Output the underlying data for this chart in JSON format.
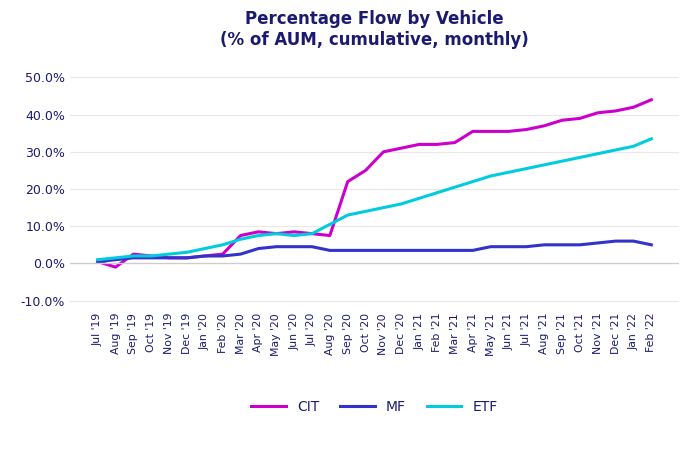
{
  "title_line1": "Percentage Flow by Vehicle",
  "title_line2": "(% of AUM, cumulative, monthly)",
  "title_color": "#1a1a6e",
  "background_color": "#ffffff",
  "xlabels": [
    "Jul '19",
    "Aug '19",
    "Sep '19",
    "Oct '19",
    "Nov '19",
    "Dec '19",
    "Jan '20",
    "Feb '20",
    "Mar '20",
    "Apr '20",
    "May '20",
    "Jun '20",
    "Jul '20",
    "Aug '20",
    "Sep '20",
    "Oct '20",
    "Nov '20",
    "Dec '20",
    "Jan '21",
    "Feb '21",
    "Mar '21",
    "Apr '21",
    "May '21",
    "Jun '21",
    "Jul '21",
    "Aug '21",
    "Sep '21",
    "Oct '21",
    "Nov '21",
    "Dec '21",
    "Jan '22",
    "Feb '22"
  ],
  "CIT": [
    0.5,
    -1.0,
    2.5,
    2.0,
    1.5,
    1.5,
    2.0,
    2.5,
    7.5,
    8.5,
    8.0,
    8.5,
    8.0,
    7.5,
    22.0,
    25.0,
    30.0,
    31.0,
    32.0,
    32.0,
    32.5,
    35.5,
    35.5,
    35.5,
    36.0,
    37.0,
    38.5,
    39.0,
    40.5,
    41.0,
    42.0,
    44.0
  ],
  "MF": [
    0.5,
    1.0,
    1.5,
    1.5,
    1.5,
    1.5,
    2.0,
    2.0,
    2.5,
    4.0,
    4.5,
    4.5,
    4.5,
    3.5,
    3.5,
    3.5,
    3.5,
    3.5,
    3.5,
    3.5,
    3.5,
    3.5,
    4.5,
    4.5,
    4.5,
    5.0,
    5.0,
    5.0,
    5.5,
    6.0,
    6.0,
    5.0
  ],
  "ETF": [
    1.0,
    1.5,
    2.0,
    2.0,
    2.5,
    3.0,
    4.0,
    5.0,
    6.5,
    7.5,
    8.0,
    7.5,
    8.0,
    10.5,
    13.0,
    14.0,
    15.0,
    16.0,
    17.5,
    19.0,
    20.5,
    22.0,
    23.5,
    24.5,
    25.5,
    26.5,
    27.5,
    28.5,
    29.5,
    30.5,
    31.5,
    33.5
  ],
  "CIT_color": "#cc00cc",
  "MF_color": "#3333cc",
  "ETF_color": "#00ccdd",
  "ylim_min": -12.0,
  "ylim_max": 55.0,
  "yticks": [
    -10.0,
    0.0,
    10.0,
    20.0,
    30.0,
    40.0,
    50.0
  ],
  "ytick_labels": [
    "-10.0%",
    "0.0%",
    "10.0%",
    "20.0%",
    "30.0%",
    "40.0%",
    "50.0%"
  ],
  "line_width": 2.2,
  "legend_entries": [
    "CIT",
    "MF",
    "ETF"
  ]
}
